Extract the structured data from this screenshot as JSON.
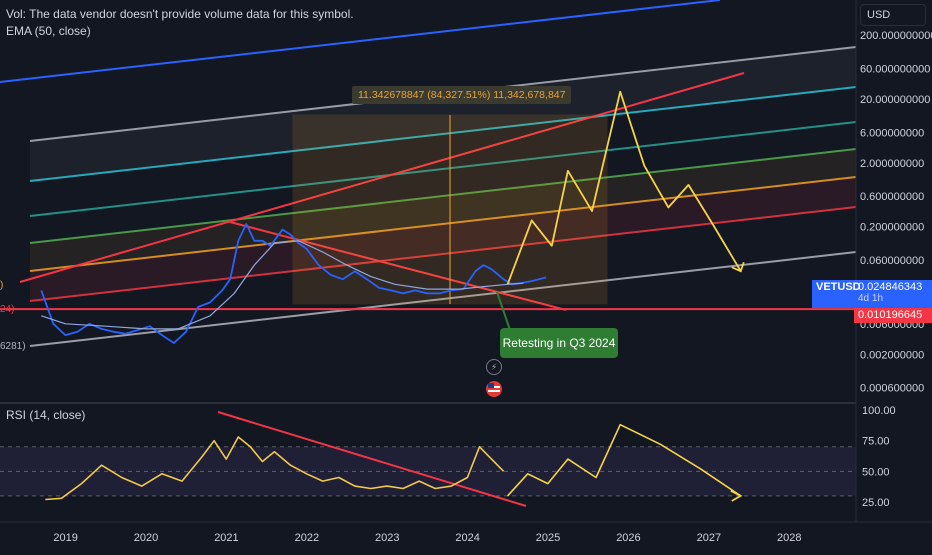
{
  "legend": {
    "vol_text": "Vol: The data vendor doesn't provide volume data for this symbol.",
    "ema_text": "EMA (50, close)",
    "rsi_text": "RSI (14, close)"
  },
  "header": {
    "currency": "USD"
  },
  "price_tags": {
    "symbol": "VETUSD",
    "last_price": "0.024846343",
    "countdown": "4d 1h",
    "line_price": "0.010196645"
  },
  "left_cut_labels": {
    "a": ")",
    "b": "24)",
    "c": "6281)"
  },
  "measure": {
    "label": "11.342678847 (84,327.51%) 11,342,678,847"
  },
  "annotations": {
    "callout": "Retesting in Q3 2024"
  },
  "colors": {
    "background": "#131722",
    "price_line": "#2962ff",
    "ema_line": "#8fa8e0",
    "rsi_line": "#f2c94c",
    "forecast": "#f5d547",
    "resistance": "#f23645",
    "green_tag": "#2e7d32"
  },
  "icons": [
    "lightning-icon",
    "us-flag-icon"
  ],
  "chart_data": [
    {
      "type": "line",
      "panel": "price",
      "scale": "log",
      "y_ticks": [
        "200.000000000",
        "60.000000000",
        "20.000000000",
        "6.000000000",
        "2.000000000",
        "0.600000000",
        "0.200000000",
        "0.060000000",
        "0.020000000",
        "0.006000000",
        "0.002000000",
        "0.000600000"
      ],
      "ylim": [
        0.0005,
        400
      ],
      "x_ticks": [
        "2019",
        "2020",
        "2021",
        "2022",
        "2023",
        "2024",
        "2025",
        "2026",
        "2027",
        "2028"
      ],
      "series": [
        {
          "key": "price",
          "x": [
            2018.7,
            2018.85,
            2019.0,
            2019.15,
            2019.3,
            2019.45,
            2019.6,
            2019.75,
            2019.9,
            2020.05,
            2020.2,
            2020.35,
            2020.5,
            2020.65,
            2020.8,
            2020.95,
            2021.05,
            2021.15,
            2021.25,
            2021.35,
            2021.45,
            2021.55,
            2021.7,
            2021.8,
            2021.9,
            2022.0,
            2022.15,
            2022.3,
            2022.45,
            2022.6,
            2022.75,
            2022.9,
            2023.05,
            2023.2,
            2023.35,
            2023.5,
            2023.65,
            2023.8,
            2023.95,
            2024.1,
            2024.2,
            2024.3,
            2024.45,
            2024.55,
            2024.65,
            2024.8,
            2024.98
          ],
          "values": [
            0.02,
            0.006,
            0.004,
            0.0045,
            0.006,
            0.005,
            0.0045,
            0.0042,
            0.0048,
            0.0055,
            0.004,
            0.003,
            0.0045,
            0.011,
            0.013,
            0.02,
            0.03,
            0.12,
            0.22,
            0.12,
            0.12,
            0.1,
            0.18,
            0.15,
            0.11,
            0.09,
            0.05,
            0.035,
            0.03,
            0.04,
            0.03,
            0.022,
            0.02,
            0.018,
            0.02,
            0.018,
            0.018,
            0.02,
            0.021,
            0.04,
            0.05,
            0.043,
            0.03,
            0.025,
            0.026,
            0.028,
            0.032
          ]
        },
        {
          "key": "ema",
          "x": [
            2018.7,
            2019.0,
            2019.5,
            2020.0,
            2020.4,
            2020.8,
            2021.1,
            2021.35,
            2021.6,
            2021.9,
            2022.2,
            2022.5,
            2022.8,
            2023.1,
            2023.5,
            2023.9,
            2024.2,
            2024.5,
            2024.7
          ],
          "values": [
            0.008,
            0.006,
            0.0055,
            0.005,
            0.005,
            0.008,
            0.018,
            0.05,
            0.11,
            0.12,
            0.08,
            0.05,
            0.033,
            0.025,
            0.021,
            0.021,
            0.023,
            0.025,
            0.026
          ]
        },
        {
          "key": "forecast",
          "x": [
            2024.5,
            2024.8,
            2025.05,
            2025.25,
            2025.55,
            2025.9,
            2026.2,
            2026.5,
            2026.75,
            2027.05,
            2027.4
          ],
          "values": [
            0.025,
            0.25,
            0.1,
            1.5,
            0.35,
            26,
            1.8,
            0.4,
            0.9,
            0.22,
            0.04
          ]
        }
      ],
      "horizontal_line": 0.010196645
    },
    {
      "type": "line",
      "panel": "rsi",
      "y_ticks": [
        "100.00",
        "75.00",
        "50.00",
        "25.00"
      ],
      "ylim": [
        18,
        100
      ],
      "band": [
        30,
        70
      ],
      "series": [
        {
          "key": "rsi",
          "x": [
            2018.75,
            2018.95,
            2019.2,
            2019.45,
            2019.7,
            2019.95,
            2020.2,
            2020.45,
            2020.7,
            2020.85,
            2021.0,
            2021.15,
            2021.3,
            2021.45,
            2021.6,
            2021.8,
            2022.0,
            2022.2,
            2022.4,
            2022.6,
            2022.8,
            2023.0,
            2023.2,
            2023.4,
            2023.6,
            2023.8,
            2024.0,
            2024.15,
            2024.3,
            2024.45
          ],
          "values": [
            27,
            28,
            40,
            55,
            45,
            38,
            48,
            42,
            62,
            75,
            60,
            78,
            70,
            58,
            66,
            55,
            48,
            42,
            45,
            38,
            36,
            38,
            36,
            42,
            36,
            38,
            45,
            70,
            60,
            50
          ]
        },
        {
          "key": "forecast",
          "x": [
            2024.5,
            2024.75,
            2025.0,
            2025.25,
            2025.6,
            2025.9,
            2026.4,
            2026.9,
            2027.4
          ],
          "values": [
            30,
            48,
            40,
            60,
            45,
            88,
            72,
            52,
            30
          ]
        }
      ]
    }
  ]
}
